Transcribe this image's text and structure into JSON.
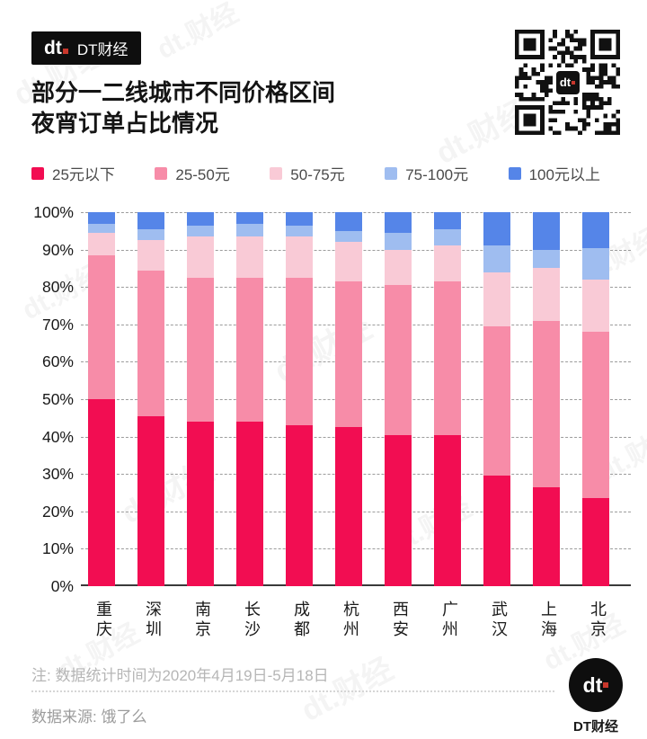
{
  "brand": {
    "badge_logo": "dt",
    "badge_name": "DT财经",
    "footer_logo": "dt",
    "footer_name": "DT财经",
    "accent_red": "#c8372c"
  },
  "title": {
    "line1": "部分一二线城市不同价格区间",
    "line2": "夜宵订单占比情况"
  },
  "watermark": {
    "text": "dt.财经"
  },
  "note": "注: 数据统计时间为2020年4月19日-5月18日",
  "source": "数据来源: 饿了么",
  "chart_data": {
    "type": "bar",
    "stacked": true,
    "unit": "percent",
    "title": "部分一二线城市不同价格区间夜宵订单占比情况",
    "categories": [
      "重庆",
      "深圳",
      "南京",
      "长沙",
      "成都",
      "杭州",
      "西安",
      "广州",
      "武汉",
      "上海",
      "北京"
    ],
    "series": [
      {
        "name": "25元以下",
        "color": "#f20d52",
        "values": [
          50,
          45.5,
          44,
          44,
          43,
          42.5,
          40.5,
          40.5,
          29.5,
          26.5,
          23.5
        ]
      },
      {
        "name": "25-50元",
        "color": "#f78ca8",
        "values": [
          38.5,
          39,
          38.5,
          38.5,
          39.5,
          39,
          40,
          41,
          40,
          44.5,
          44.5
        ]
      },
      {
        "name": "50-75元",
        "color": "#f9cad6",
        "values": [
          6,
          8,
          11,
          11,
          11,
          10.5,
          9.5,
          9.5,
          14.5,
          14,
          14
        ]
      },
      {
        "name": "75-100元",
        "color": "#9fbdf0",
        "values": [
          2.5,
          3,
          3,
          3.5,
          3,
          3,
          4.5,
          4.5,
          7,
          5,
          8.5
        ]
      },
      {
        "name": "100元以上",
        "color": "#5585e8",
        "values": [
          3,
          4.5,
          3.5,
          3,
          3.5,
          5,
          5.5,
          4.5,
          9,
          10,
          9.5
        ]
      }
    ],
    "yticks": [
      "100%",
      "90%",
      "80%",
      "70%",
      "60%",
      "50%",
      "40%",
      "30%",
      "20%",
      "10%",
      "0%"
    ],
    "ylim": [
      0,
      100
    ],
    "grid": "dashed-horizontal",
    "legend_position": "top"
  }
}
